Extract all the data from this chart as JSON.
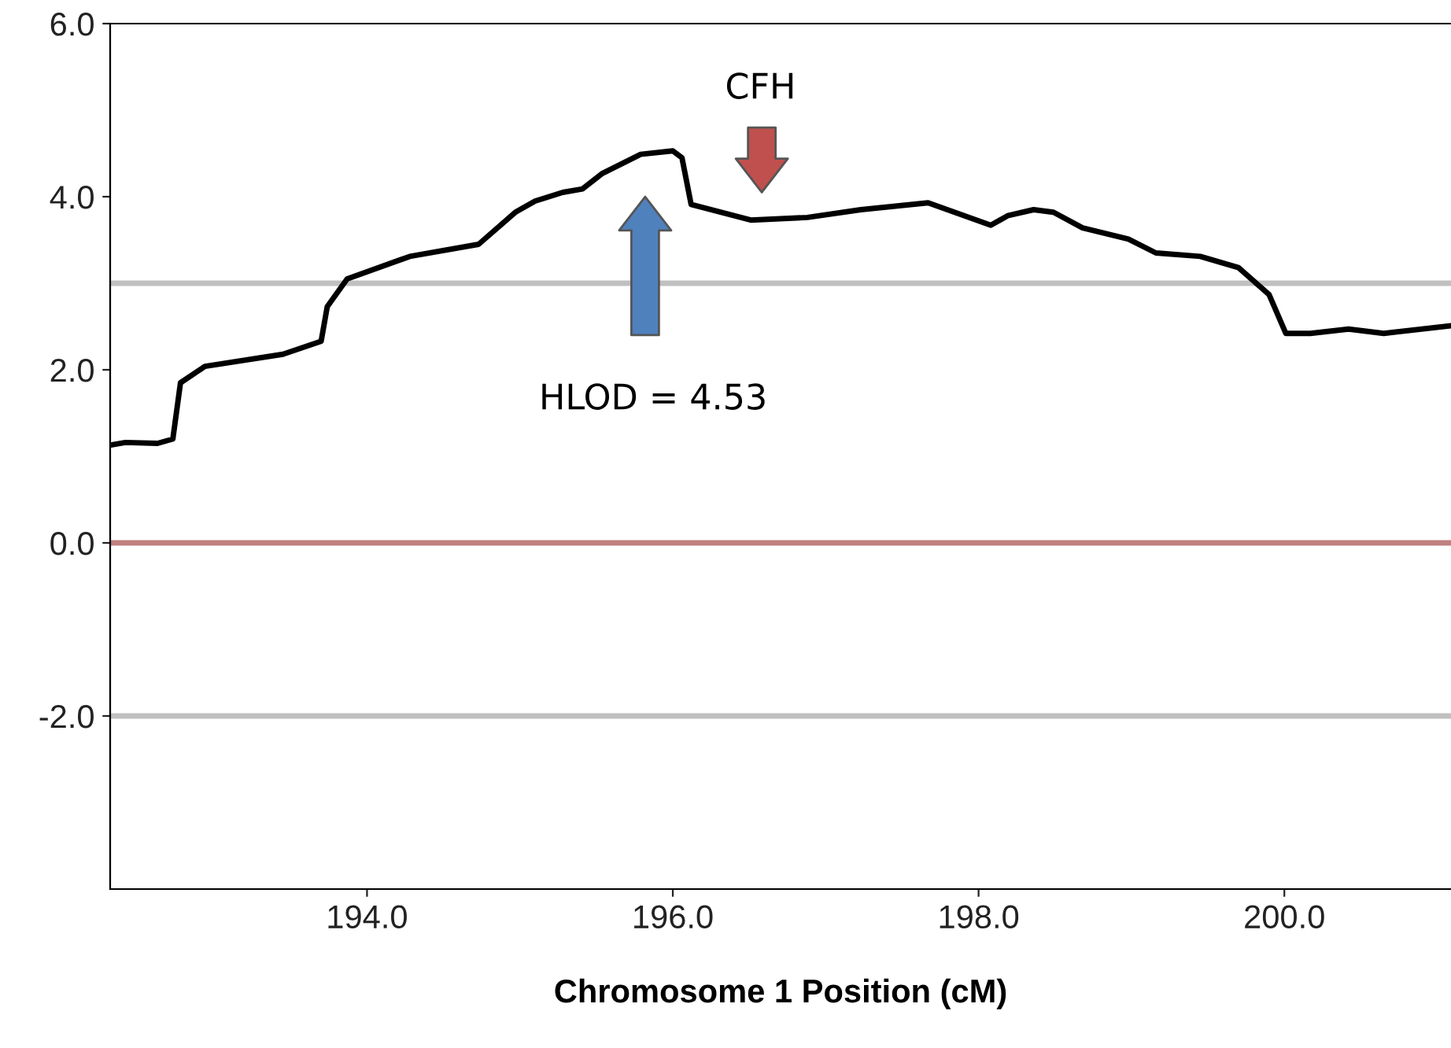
{
  "chart_data": {
    "type": "line",
    "xlabel": "Chromosome 1 Position (cM)",
    "xlim": [
      192.32,
      201.09
    ],
    "ylim": [
      -4.0,
      6.0
    ],
    "xticks": [
      {
        "value": 194,
        "label": "194.0"
      },
      {
        "value": 196,
        "label": "196.0"
      },
      {
        "value": 198,
        "label": "198.0"
      },
      {
        "value": 200,
        "label": "200.0"
      }
    ],
    "yticks": [
      {
        "value": -2,
        "label": "-2.0"
      },
      {
        "value": 0,
        "label": "0.0"
      },
      {
        "value": 2,
        "label": "2.0"
      },
      {
        "value": 4,
        "label": "4.0"
      },
      {
        "value": 6,
        "label": "6.0"
      }
    ],
    "grid": false,
    "marker": "none",
    "line_style": "solid",
    "series": [
      {
        "color": "#000000",
        "x": [
          192.32,
          192.42,
          192.63,
          192.73,
          192.78,
          192.94,
          193.45,
          193.7,
          193.74,
          193.87,
          194.28,
          194.73,
          194.97,
          195.1,
          195.28,
          195.41,
          195.54,
          195.79,
          196.0,
          196.06,
          196.12,
          196.51,
          196.88,
          197.23,
          197.67,
          198.08,
          198.19,
          198.36,
          198.49,
          198.68,
          198.98,
          199.16,
          199.45,
          199.7,
          199.9,
          200.01,
          200.17,
          200.42,
          200.65,
          201.09
        ],
        "values": [
          1.13,
          1.16,
          1.15,
          1.2,
          1.85,
          2.04,
          2.18,
          2.33,
          2.73,
          3.05,
          3.31,
          3.45,
          3.82,
          3.95,
          4.05,
          4.09,
          4.27,
          4.49,
          4.53,
          4.45,
          3.91,
          3.73,
          3.76,
          3.85,
          3.93,
          3.67,
          3.78,
          3.85,
          3.82,
          3.64,
          3.51,
          3.35,
          3.31,
          3.18,
          2.87,
          2.42,
          2.42,
          2.47,
          2.42,
          2.51
        ]
      }
    ],
    "ref_lines": [
      {
        "axis": "y",
        "value": 3,
        "color": "#c0c0c0"
      },
      {
        "axis": "y",
        "value": 0,
        "color": "#c08080"
      },
      {
        "axis": "y",
        "value": -2,
        "color": "#c0c0c0"
      }
    ],
    "annotations": [
      "CFH",
      "HLOD = 4.53"
    ]
  }
}
